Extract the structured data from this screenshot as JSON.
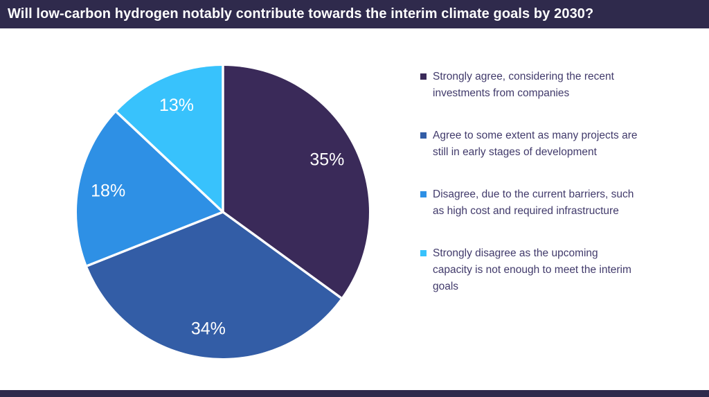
{
  "header": {
    "title": "Will low-carbon hydrogen notably contribute towards the interim climate goals by 2030?"
  },
  "theme": {
    "bar_color": "#2f2a4c",
    "background": "#ffffff",
    "legend_text_color": "#413a6b",
    "slice_label_color": "#ffffff",
    "separator_color": "#ffffff"
  },
  "chart_data": {
    "type": "pie",
    "title": "Will low-carbon hydrogen notably contribute towards the interim climate goals by 2030?",
    "values": [
      35,
      34,
      18,
      13
    ],
    "labels": [
      "35%",
      "34%",
      "18%",
      "13%"
    ],
    "colors": [
      "#3a2a59",
      "#335da6",
      "#2e90e5",
      "#38c2fc"
    ],
    "start_angle_deg": 0,
    "direction": "clockwise",
    "legend_position": "right",
    "legend": [
      {
        "label": "Strongly agree, considering the recent investments from companies",
        "color": "#3a2a59",
        "value": 35
      },
      {
        "label": "Agree to some extent as many projects are still in early stages of development",
        "color": "#335da6",
        "value": 34
      },
      {
        "label": "Disagree, due to the current barriers, such as high cost and required infrastructure",
        "color": "#2e90e5",
        "value": 18
      },
      {
        "label": "Strongly disagree as the upcoming capacity is not enough to meet the interim goals",
        "color": "#38c2fc",
        "value": 13
      }
    ]
  }
}
